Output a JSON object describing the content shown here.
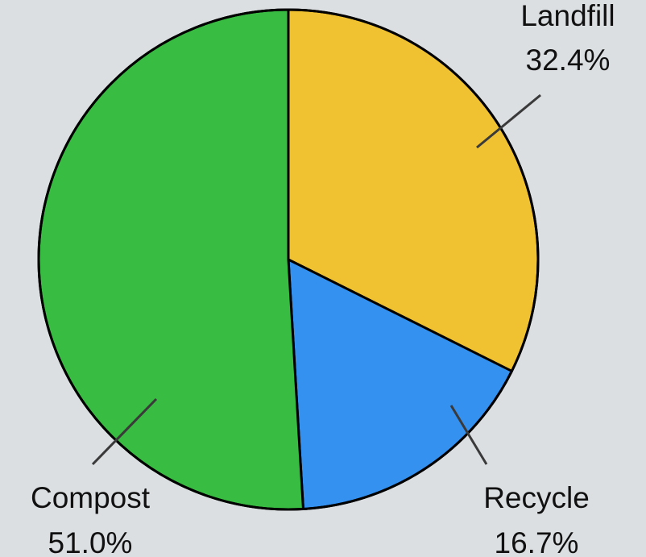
{
  "chart_data": {
    "type": "pie",
    "title": "",
    "slices": [
      {
        "label": "Landfill",
        "value": 32.4,
        "percent_label": "32.4%",
        "color": "#f0c232"
      },
      {
        "label": "Recycle",
        "value": 16.7,
        "percent_label": "16.7%",
        "color": "#3591f0"
      },
      {
        "label": "Compost",
        "value": 51.0,
        "percent_label": "51.0%",
        "color": "#38bc41"
      }
    ],
    "start_angle": "12 o'clock",
    "direction": "clockwise",
    "legend": "none",
    "slice_border_color": "#000000",
    "leader_line_color": "#3a3a3a"
  }
}
